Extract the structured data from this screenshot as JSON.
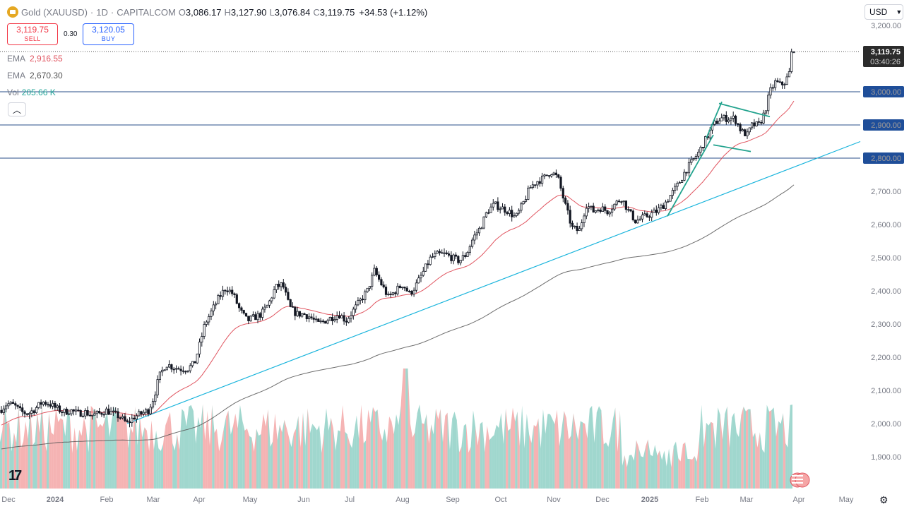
{
  "header": {
    "title": "Gold (XAUUSD)",
    "interval": "1D",
    "source": "CAPITALCOM",
    "open_label": "O",
    "open": "3,086.17",
    "high_label": "H",
    "high": "3,127.90",
    "low_label": "L",
    "low": "3,076.84",
    "close_label": "C",
    "close": "3,119.75",
    "change": "+34.53 (+1.12%)"
  },
  "trade": {
    "sell_price": "3,119.75",
    "sell_label": "SELL",
    "spread": "0.30",
    "buy_price": "3,120.05",
    "buy_label": "BUY"
  },
  "indicators": [
    {
      "name": "EMA",
      "value": "2,916.55",
      "color": "#e05560"
    },
    {
      "name": "EMA",
      "value": "2,670.30",
      "color": "#555555"
    },
    {
      "name": "Vol",
      "value": "205.66 K",
      "color": "#26a69a"
    }
  ],
  "currency": "USD",
  "collapse_icon": "chevron-up-icon",
  "last_price_tag": {
    "price": "3,119.75",
    "countdown": "03:40:26"
  },
  "chart_data": {
    "type": "candlestick",
    "y_ticks": [
      "3,200.00",
      "3,100.00",
      "3,000.00",
      "2,900.00",
      "2,800.00",
      "2,700.00",
      "2,600.00",
      "2,500.00",
      "2,400.00",
      "2,300.00",
      "2,200.00",
      "2,100.00",
      "2,000.00",
      "1,900.00"
    ],
    "x_ticks": [
      "Dec",
      "2024",
      "Feb",
      "Mar",
      "Apr",
      "May",
      "Jun",
      "Jul",
      "Aug",
      "Sep",
      "Oct",
      "Nov",
      "Dec",
      "2025",
      "Feb",
      "Mar",
      "Apr",
      "May"
    ],
    "ylim": [
      1880,
      3210
    ],
    "horizontal_levels": [
      {
        "value": 3000,
        "label": "3,000.00"
      },
      {
        "value": 2900,
        "label": "2,900.00"
      },
      {
        "value": 2800,
        "label": "2,800.00"
      }
    ],
    "price_path": [
      {
        "x": 0,
        "y": 2040
      },
      {
        "x": 10,
        "y": 2060
      },
      {
        "x": 20,
        "y": 2055
      },
      {
        "x": 30,
        "y": 2035
      },
      {
        "x": 40,
        "y": 2030
      },
      {
        "x": 50,
        "y": 2045
      },
      {
        "x": 60,
        "y": 2065
      },
      {
        "x": 70,
        "y": 2060
      },
      {
        "x": 80,
        "y": 2045
      },
      {
        "x": 90,
        "y": 2035
      },
      {
        "x": 100,
        "y": 2040
      },
      {
        "x": 110,
        "y": 2030
      },
      {
        "x": 120,
        "y": 2035
      },
      {
        "x": 130,
        "y": 2025
      },
      {
        "x": 140,
        "y": 2030
      },
      {
        "x": 150,
        "y": 2040
      },
      {
        "x": 160,
        "y": 2030
      },
      {
        "x": 170,
        "y": 2020
      },
      {
        "x": 180,
        "y": 2000
      },
      {
        "x": 190,
        "y": 2020
      },
      {
        "x": 200,
        "y": 2030
      },
      {
        "x": 210,
        "y": 2040
      },
      {
        "x": 218,
        "y": 2080
      },
      {
        "x": 225,
        "y": 2140
      },
      {
        "x": 235,
        "y": 2180
      },
      {
        "x": 245,
        "y": 2170
      },
      {
        "x": 255,
        "y": 2165
      },
      {
        "x": 265,
        "y": 2165
      },
      {
        "x": 275,
        "y": 2180
      },
      {
        "x": 283,
        "y": 2240
      },
      {
        "x": 290,
        "y": 2300
      },
      {
        "x": 300,
        "y": 2340
      },
      {
        "x": 310,
        "y": 2380
      },
      {
        "x": 320,
        "y": 2410
      },
      {
        "x": 330,
        "y": 2390
      },
      {
        "x": 340,
        "y": 2340
      },
      {
        "x": 350,
        "y": 2310
      },
      {
        "x": 360,
        "y": 2320
      },
      {
        "x": 370,
        "y": 2330
      },
      {
        "x": 380,
        "y": 2360
      },
      {
        "x": 390,
        "y": 2410
      },
      {
        "x": 400,
        "y": 2420
      },
      {
        "x": 410,
        "y": 2350
      },
      {
        "x": 420,
        "y": 2330
      },
      {
        "x": 430,
        "y": 2330
      },
      {
        "x": 440,
        "y": 2320
      },
      {
        "x": 450,
        "y": 2300
      },
      {
        "x": 460,
        "y": 2310
      },
      {
        "x": 470,
        "y": 2320
      },
      {
        "x": 480,
        "y": 2330
      },
      {
        "x": 490,
        "y": 2310
      },
      {
        "x": 500,
        "y": 2340
      },
      {
        "x": 510,
        "y": 2370
      },
      {
        "x": 520,
        "y": 2400
      },
      {
        "x": 530,
        "y": 2460
      },
      {
        "x": 540,
        "y": 2420
      },
      {
        "x": 550,
        "y": 2380
      },
      {
        "x": 560,
        "y": 2400
      },
      {
        "x": 570,
        "y": 2420
      },
      {
        "x": 580,
        "y": 2390
      },
      {
        "x": 590,
        "y": 2420
      },
      {
        "x": 600,
        "y": 2460
      },
      {
        "x": 610,
        "y": 2500
      },
      {
        "x": 620,
        "y": 2510
      },
      {
        "x": 630,
        "y": 2510
      },
      {
        "x": 640,
        "y": 2500
      },
      {
        "x": 650,
        "y": 2490
      },
      {
        "x": 660,
        "y": 2510
      },
      {
        "x": 670,
        "y": 2560
      },
      {
        "x": 680,
        "y": 2590
      },
      {
        "x": 690,
        "y": 2640
      },
      {
        "x": 700,
        "y": 2660
      },
      {
        "x": 710,
        "y": 2650
      },
      {
        "x": 720,
        "y": 2640
      },
      {
        "x": 730,
        "y": 2620
      },
      {
        "x": 740,
        "y": 2660
      },
      {
        "x": 750,
        "y": 2710
      },
      {
        "x": 760,
        "y": 2730
      },
      {
        "x": 770,
        "y": 2740
      },
      {
        "x": 780,
        "y": 2760
      },
      {
        "x": 790,
        "y": 2740
      },
      {
        "x": 800,
        "y": 2660
      },
      {
        "x": 810,
        "y": 2590
      },
      {
        "x": 820,
        "y": 2580
      },
      {
        "x": 830,
        "y": 2660
      },
      {
        "x": 840,
        "y": 2640
      },
      {
        "x": 850,
        "y": 2650
      },
      {
        "x": 860,
        "y": 2640
      },
      {
        "x": 870,
        "y": 2660
      },
      {
        "x": 880,
        "y": 2680
      },
      {
        "x": 890,
        "y": 2640
      },
      {
        "x": 900,
        "y": 2610
      },
      {
        "x": 910,
        "y": 2620
      },
      {
        "x": 920,
        "y": 2630
      },
      {
        "x": 930,
        "y": 2640
      },
      {
        "x": 940,
        "y": 2660
      },
      {
        "x": 950,
        "y": 2690
      },
      {
        "x": 960,
        "y": 2720
      },
      {
        "x": 970,
        "y": 2760
      },
      {
        "x": 980,
        "y": 2790
      },
      {
        "x": 990,
        "y": 2820
      },
      {
        "x": 1000,
        "y": 2860
      },
      {
        "x": 1010,
        "y": 2900
      },
      {
        "x": 1020,
        "y": 2920
      },
      {
        "x": 1030,
        "y": 2920
      },
      {
        "x": 1040,
        "y": 2920
      },
      {
        "x": 1050,
        "y": 2880
      },
      {
        "x": 1058,
        "y": 2870
      },
      {
        "x": 1065,
        "y": 2900
      },
      {
        "x": 1075,
        "y": 2900
      },
      {
        "x": 1083,
        "y": 2940
      },
      {
        "x": 1090,
        "y": 3000
      },
      {
        "x": 1098,
        "y": 3030
      },
      {
        "x": 1105,
        "y": 3020
      },
      {
        "x": 1112,
        "y": 3030
      },
      {
        "x": 1118,
        "y": 3060
      },
      {
        "x": 1124,
        "y": 3119
      }
    ]
  }
}
